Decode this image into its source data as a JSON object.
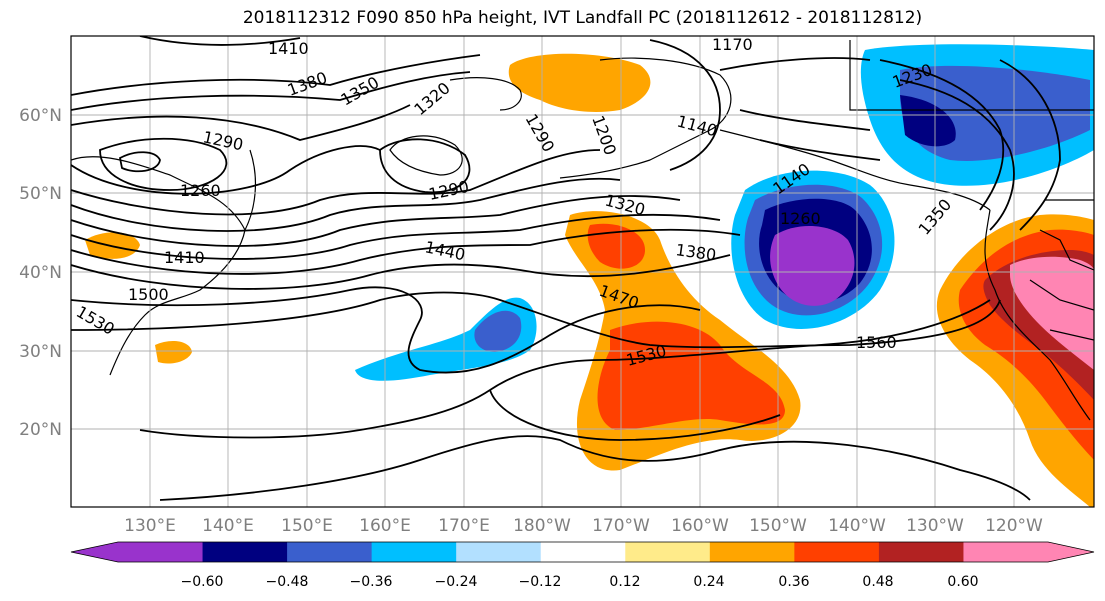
{
  "title": "2018112312 F090 850 hPa height, IVT Landfall PC (2018112612 - 2018112812)",
  "lat_labels": [
    "60°N",
    "50°N",
    "40°N",
    "30°N",
    "20°N"
  ],
  "lon_labels": [
    "130°E",
    "140°E",
    "150°E",
    "160°E",
    "170°E",
    "180°W",
    "170°W",
    "160°W",
    "150°W",
    "140°W",
    "130°W",
    "120°W"
  ],
  "colorbar": {
    "colors": [
      "#9933cc",
      "#000080",
      "#3a5fcd",
      "#00bfff",
      "#b2e0ff",
      "#ffffff",
      "#ffeb8a",
      "#ffa500",
      "#ff4000",
      "#b22222",
      "#ff85b3"
    ],
    "tick_labels": [
      "−0.60",
      "−0.48",
      "−0.36",
      "−0.24",
      "−0.12",
      "0.12",
      "0.24",
      "0.36",
      "0.48",
      "0.60"
    ]
  },
  "contour_labels": [
    "1410",
    "1380",
    "1350",
    "1320",
    "1290",
    "1260",
    "1410",
    "1500",
    "1530",
    "1290",
    "1170",
    "1230",
    "1200",
    "1140",
    "1290",
    "1140",
    "1260",
    "1320",
    "1380",
    "1440",
    "1470",
    "1530",
    "1560",
    "1350"
  ]
}
